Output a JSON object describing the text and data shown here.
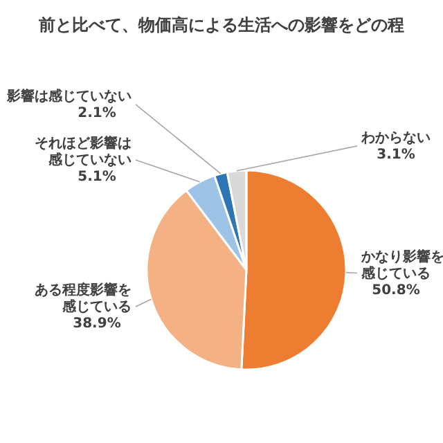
{
  "chart_data": {
    "type": "pie",
    "title": "前と比べて、物価高による生活への影響をどの程",
    "categories": [
      "かなり影響を感じている",
      "ある程度影響を感じている",
      "それほど影響は感じていない",
      "影響は感じていない",
      "わからない"
    ],
    "values": [
      50.8,
      38.9,
      5.1,
      2.1,
      3.1
    ],
    "colors": [
      "#ed7d31",
      "#f4b183",
      "#9dc3e6",
      "#2e75b6",
      "#d9d9d9"
    ],
    "value_labels": [
      "50.8%",
      "38.9%",
      "5.1%",
      "2.1%",
      "3.1%"
    ]
  }
}
